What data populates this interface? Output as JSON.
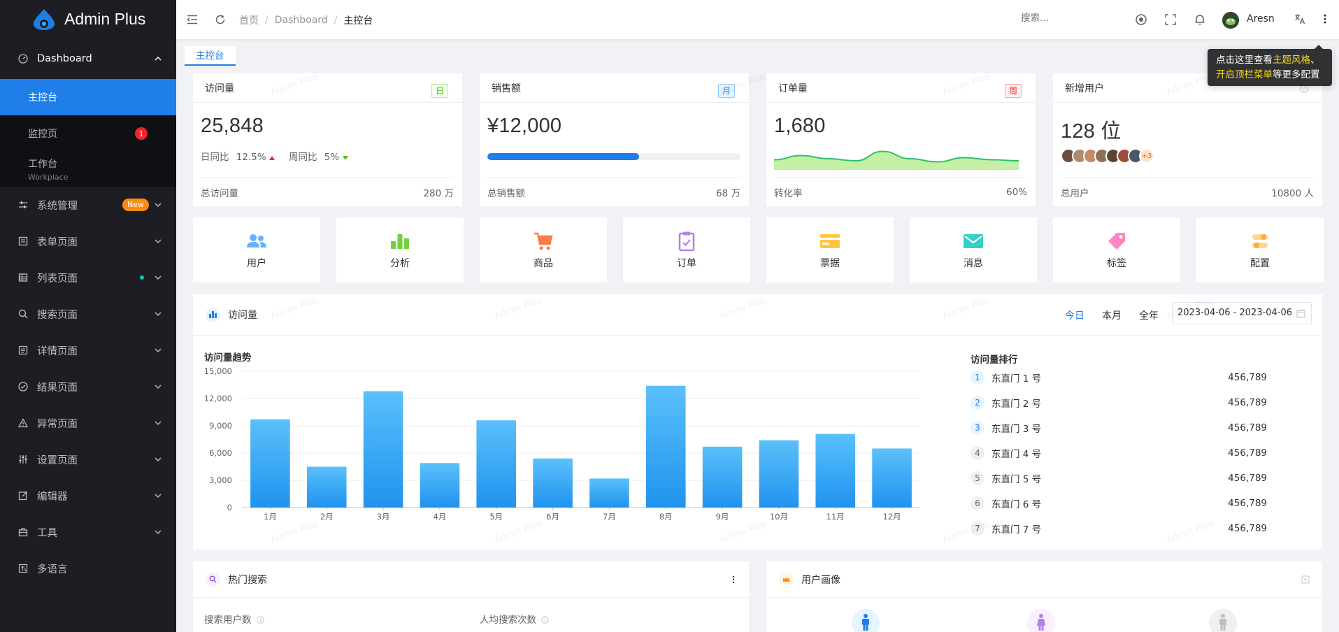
{
  "app": {
    "name": "Admin Plus",
    "watermark": "Admin Plus"
  },
  "sidebar": {
    "dashboard_label": "Dashboard",
    "sub": [
      {
        "label": "主控台"
      },
      {
        "label": "监控页",
        "badge": "1"
      },
      {
        "label": "工作台",
        "subtitle": "Workplace"
      }
    ],
    "items": [
      {
        "label": "系统管理",
        "badge": "New"
      },
      {
        "label": "表单页面"
      },
      {
        "label": "列表页面"
      },
      {
        "label": "搜索页面"
      },
      {
        "label": "详情页面"
      },
      {
        "label": "结果页面"
      },
      {
        "label": "异常页面"
      },
      {
        "label": "设置页面"
      },
      {
        "label": "编辑器"
      },
      {
        "label": "工具"
      },
      {
        "label": "多语言"
      }
    ]
  },
  "header": {
    "breadcrumb": [
      "首页",
      "Dashboard",
      "主控台"
    ],
    "search_placeholder": "搜索...",
    "user": "Aresn"
  },
  "tabs": {
    "active": "主控台"
  },
  "tooltip": {
    "p1": "点击这里查看",
    "h1": "主题风格",
    "p2": "、",
    "h2": "开启顶栏菜单",
    "p3": "等更多配置"
  },
  "stats": [
    {
      "title": "访问量",
      "tag": "日",
      "value": "25,848",
      "d1_label": "日同比",
      "d1_value": "12.5%",
      "d2_label": "周同比",
      "d2_value": "5%",
      "foot_label": "总访问量",
      "foot_value": "280 万"
    },
    {
      "title": "销售额",
      "tag": "月",
      "value": "¥12,000",
      "progress": 0.6,
      "foot_label": "总销售额",
      "foot_value": "68 万"
    },
    {
      "title": "订单量",
      "tag": "周",
      "value": "1,680",
      "foot_label": "转化率",
      "foot_value": "60%"
    },
    {
      "title": "新增用户",
      "value": "128 位",
      "avatars_more": "+3",
      "foot_label": "总用户",
      "foot_value": "10800 人"
    }
  ],
  "quick": [
    {
      "label": "用户",
      "icon": "users-icon",
      "color": "#69b1ff"
    },
    {
      "label": "分析",
      "icon": "bar-chart-icon",
      "color": "#73d13d"
    },
    {
      "label": "商品",
      "icon": "cart-icon",
      "color": "#ff7a45"
    },
    {
      "label": "订单",
      "icon": "clipboard-icon",
      "color": "#b37feb"
    },
    {
      "label": "票据",
      "icon": "card-icon",
      "color": "#ffc53d"
    },
    {
      "label": "消息",
      "icon": "mail-icon",
      "color": "#36cfc9"
    },
    {
      "label": "标签",
      "icon": "tag-icon",
      "color": "#ff85c0"
    },
    {
      "label": "配置",
      "icon": "config-icon",
      "color": "#ffa940"
    }
  ],
  "visits": {
    "title": "访问量",
    "ranges": [
      "今日",
      "本月",
      "全年"
    ],
    "date_range": "2023-04-06 - 2023-04-06",
    "rank_title": "访问量排行",
    "rank": [
      {
        "n": "1",
        "name": "东直门 1 号",
        "value": "456,789"
      },
      {
        "n": "2",
        "name": "东直门 2 号",
        "value": "456,789"
      },
      {
        "n": "3",
        "name": "东直门 3 号",
        "value": "456,789"
      },
      {
        "n": "4",
        "name": "东直门 4 号",
        "value": "456,789"
      },
      {
        "n": "5",
        "name": "东直门 5 号",
        "value": "456,789"
      },
      {
        "n": "6",
        "name": "东直门 6 号",
        "value": "456,789"
      },
      {
        "n": "7",
        "name": "东直门 7 号",
        "value": "456,789"
      }
    ]
  },
  "chart_data": {
    "type": "bar",
    "title": "访问量趋势",
    "categories": [
      "1月",
      "2月",
      "3月",
      "4月",
      "5月",
      "6月",
      "7月",
      "8月",
      "9月",
      "10月",
      "11月",
      "12月"
    ],
    "values": [
      9700,
      4500,
      12800,
      4900,
      9600,
      5400,
      3200,
      13400,
      6700,
      7400,
      8100,
      6500
    ],
    "ylim": [
      0,
      15000
    ],
    "yticks": [
      "0",
      "3,000",
      "6,000",
      "9,000",
      "12,000",
      "15,000"
    ],
    "grid": true,
    "color": "#1f93ef"
  },
  "hot_search": {
    "title": "热门搜索",
    "col1": "搜索用户数",
    "col2": "人均搜索次数"
  },
  "portrait": {
    "title": "用户画像"
  },
  "order_wave": [
    0.35,
    0.55,
    0.4,
    0.3,
    0.75,
    0.4,
    0.25,
    0.45,
    0.35,
    0.3
  ]
}
